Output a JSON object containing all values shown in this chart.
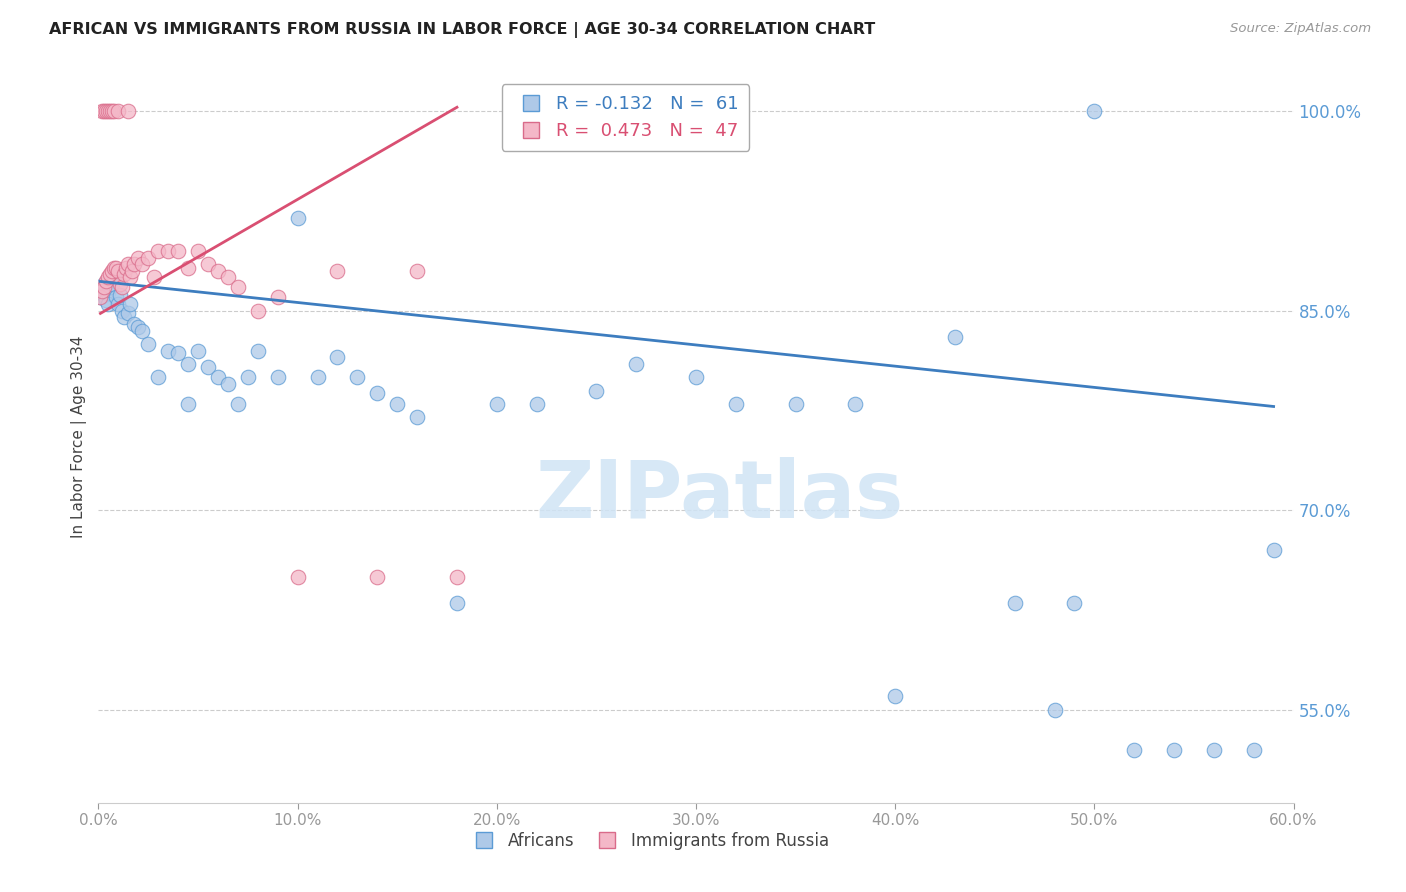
{
  "title": "AFRICAN VS IMMIGRANTS FROM RUSSIA IN LABOR FORCE | AGE 30-34 CORRELATION CHART",
  "source": "Source: ZipAtlas.com",
  "ylabel": "In Labor Force | Age 30-34",
  "xlim": [
    0.0,
    0.6
  ],
  "ylim": [
    0.48,
    1.03
  ],
  "yticks": [
    0.55,
    0.7,
    0.85,
    1.0
  ],
  "xticks": [
    0.0,
    0.1,
    0.2,
    0.3,
    0.4,
    0.5,
    0.6
  ],
  "legend_r_blue": "R = -0.132",
  "legend_n_blue": "N =  61",
  "legend_r_pink": "R =  0.473",
  "legend_n_pink": "N =  47",
  "blue_fill": "#aec9e8",
  "blue_edge": "#5b9bd5",
  "pink_fill": "#f4b8c8",
  "pink_edge": "#d96b8a",
  "blue_line": "#3d7dbf",
  "pink_line": "#d94f72",
  "right_axis_color": "#5b9bd5",
  "watermark_color": "#d0e4f5",
  "africans_x": [
    0.001,
    0.002,
    0.003,
    0.003,
    0.004,
    0.005,
    0.005,
    0.006,
    0.007,
    0.008,
    0.009,
    0.01,
    0.011,
    0.012,
    0.013,
    0.015,
    0.016,
    0.018,
    0.02,
    0.022,
    0.025,
    0.03,
    0.035,
    0.04,
    0.045,
    0.05,
    0.055,
    0.06,
    0.065,
    0.07,
    0.08,
    0.09,
    0.1,
    0.11,
    0.12,
    0.13,
    0.14,
    0.16,
    0.18,
    0.2,
    0.22,
    0.25,
    0.27,
    0.3,
    0.32,
    0.35,
    0.38,
    0.4,
    0.43,
    0.46,
    0.49,
    0.52,
    0.54,
    0.56,
    0.58,
    0.59,
    0.5,
    0.48,
    0.15,
    0.075,
    0.045
  ],
  "africans_y": [
    0.86,
    0.865,
    0.862,
    0.87,
    0.858,
    0.863,
    0.855,
    0.868,
    0.87,
    0.875,
    0.86,
    0.855,
    0.862,
    0.85,
    0.845,
    0.848,
    0.855,
    0.84,
    0.838,
    0.835,
    0.825,
    0.8,
    0.82,
    0.818,
    0.81,
    0.82,
    0.808,
    0.8,
    0.795,
    0.78,
    0.82,
    0.8,
    0.92,
    0.8,
    0.815,
    0.8,
    0.788,
    0.77,
    0.63,
    0.78,
    0.78,
    0.79,
    0.81,
    0.8,
    0.78,
    0.78,
    0.78,
    0.56,
    0.83,
    0.63,
    0.63,
    0.52,
    0.52,
    0.52,
    0.52,
    0.67,
    1.0,
    0.55,
    0.78,
    0.8,
    0.78
  ],
  "russia_x": [
    0.001,
    0.002,
    0.002,
    0.003,
    0.003,
    0.004,
    0.004,
    0.005,
    0.005,
    0.006,
    0.006,
    0.007,
    0.007,
    0.008,
    0.008,
    0.009,
    0.01,
    0.01,
    0.011,
    0.012,
    0.013,
    0.014,
    0.015,
    0.015,
    0.016,
    0.017,
    0.018,
    0.02,
    0.022,
    0.025,
    0.028,
    0.03,
    0.035,
    0.04,
    0.045,
    0.05,
    0.055,
    0.06,
    0.065,
    0.07,
    0.08,
    0.09,
    0.1,
    0.12,
    0.14,
    0.16,
    0.18
  ],
  "russia_y": [
    0.86,
    0.865,
    1.0,
    0.868,
    1.0,
    0.872,
    1.0,
    0.875,
    1.0,
    0.878,
    1.0,
    0.88,
    1.0,
    0.882,
    1.0,
    0.882,
    0.88,
    1.0,
    0.87,
    0.868,
    0.878,
    0.882,
    0.885,
    1.0,
    0.875,
    0.88,
    0.885,
    0.89,
    0.885,
    0.89,
    0.875,
    0.895,
    0.895,
    0.895,
    0.882,
    0.895,
    0.885,
    0.88,
    0.875,
    0.868,
    0.85,
    0.86,
    0.65,
    0.88,
    0.65,
    0.88,
    0.65
  ],
  "blue_trendline_x": [
    0.001,
    0.59
  ],
  "blue_trendline_y": [
    0.872,
    0.778
  ],
  "pink_trendline_x": [
    0.001,
    0.18
  ],
  "pink_trendline_y": [
    0.848,
    1.003
  ]
}
